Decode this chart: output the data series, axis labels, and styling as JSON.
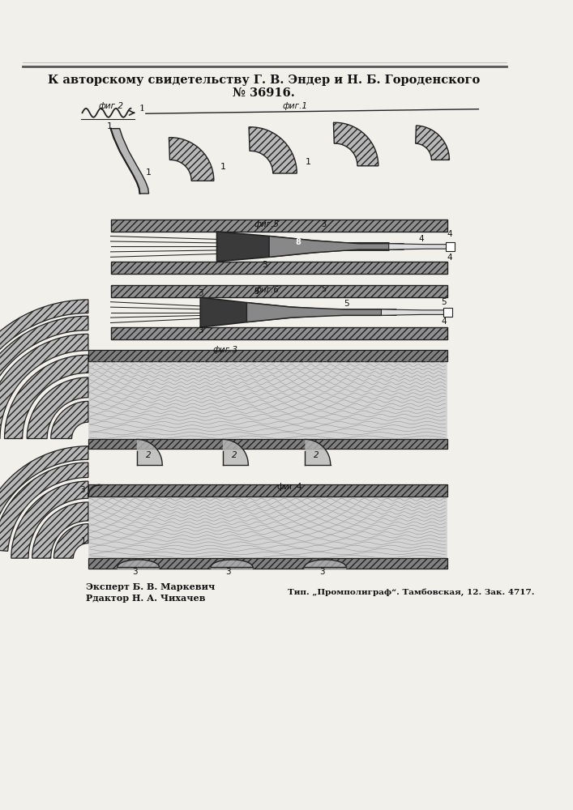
{
  "bg_color": "#f2f0eb",
  "title_line1": "К авторскому свидетельству Г. В. Эндер и Н. Б. Городенского",
  "title_line2": "№ 36916.",
  "footer_left1": "Эксперт Б. В. Маркевич",
  "footer_left2": "Рдактор Н. А. Чихачев",
  "footer_right": "Тип. „Промполиграф“. Тамбовская, 12. Зак. 4717.",
  "text_color": "#111111",
  "line_color": "#222222",
  "hatch_color": "#666666",
  "dark_fill": "#3a3a3a",
  "mid_fill": "#888888",
  "light_fill": "#cccccc",
  "blade_fill": "#b8b8b8",
  "wall_fill": "#909090"
}
